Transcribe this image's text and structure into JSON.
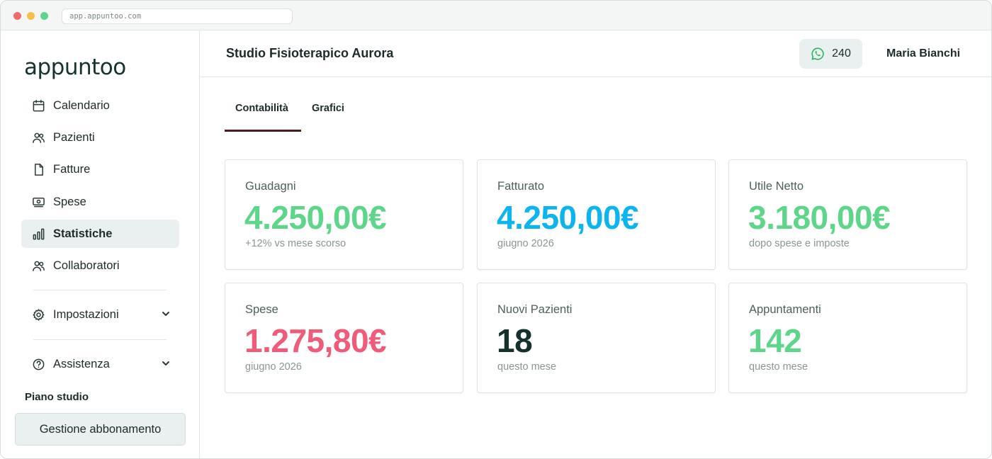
{
  "browser": {
    "url": "app.appuntoo.com"
  },
  "sidebar": {
    "logo": "appuntoo",
    "items": [
      {
        "label": "Calendario",
        "icon": "calendar-icon"
      },
      {
        "label": "Pazienti",
        "icon": "users-icon"
      },
      {
        "label": "Fatture",
        "icon": "document-icon"
      },
      {
        "label": "Spese",
        "icon": "receipt-icon"
      },
      {
        "label": "Statistiche",
        "icon": "bar-chart-icon",
        "active": true
      },
      {
        "label": "Collaboratori",
        "icon": "users-icon"
      },
      {
        "label": "Impostazioni",
        "icon": "gear-icon"
      },
      {
        "label": "Assistenza",
        "icon": "help-circle-icon"
      }
    ],
    "plan_label": "Piano studio",
    "plan_button": "Gestione abbonamento"
  },
  "header": {
    "studio_name": "Studio Fisioterapico Aurora",
    "whatsapp_count": "240",
    "user_name": "Maria Bianchi"
  },
  "tabs": [
    {
      "label": "Contabilità",
      "active": true
    },
    {
      "label": "Grafici",
      "active": false
    }
  ],
  "cards": [
    {
      "label": "Guadagni",
      "value": "4.250,00€",
      "sub": "+12% vs mese scorso",
      "color": "#5ed68a"
    },
    {
      "label": "Fatturato",
      "value": "4.250,00€",
      "sub": "giugno 2026",
      "color": "#0eb4ee"
    },
    {
      "label": "Utile Netto",
      "value": "3.180,00€",
      "sub": "dopo spese e imposte",
      "color": "#5ed68a"
    },
    {
      "label": "Spese",
      "value": "1.275,80€",
      "sub": "giugno 2026",
      "color": "#ef5b78"
    },
    {
      "label": "Nuovi Pazienti",
      "value": "18",
      "sub": "questo mese",
      "color": "#16302e"
    },
    {
      "label": "Appuntamenti",
      "value": "142",
      "sub": "questo mese",
      "color": "#5ed68a"
    }
  ],
  "colors": {
    "accent_tab": "#4a1a1f",
    "active_nav_bg": "#e9f0ef",
    "whatsapp_green": "#2fb463"
  }
}
